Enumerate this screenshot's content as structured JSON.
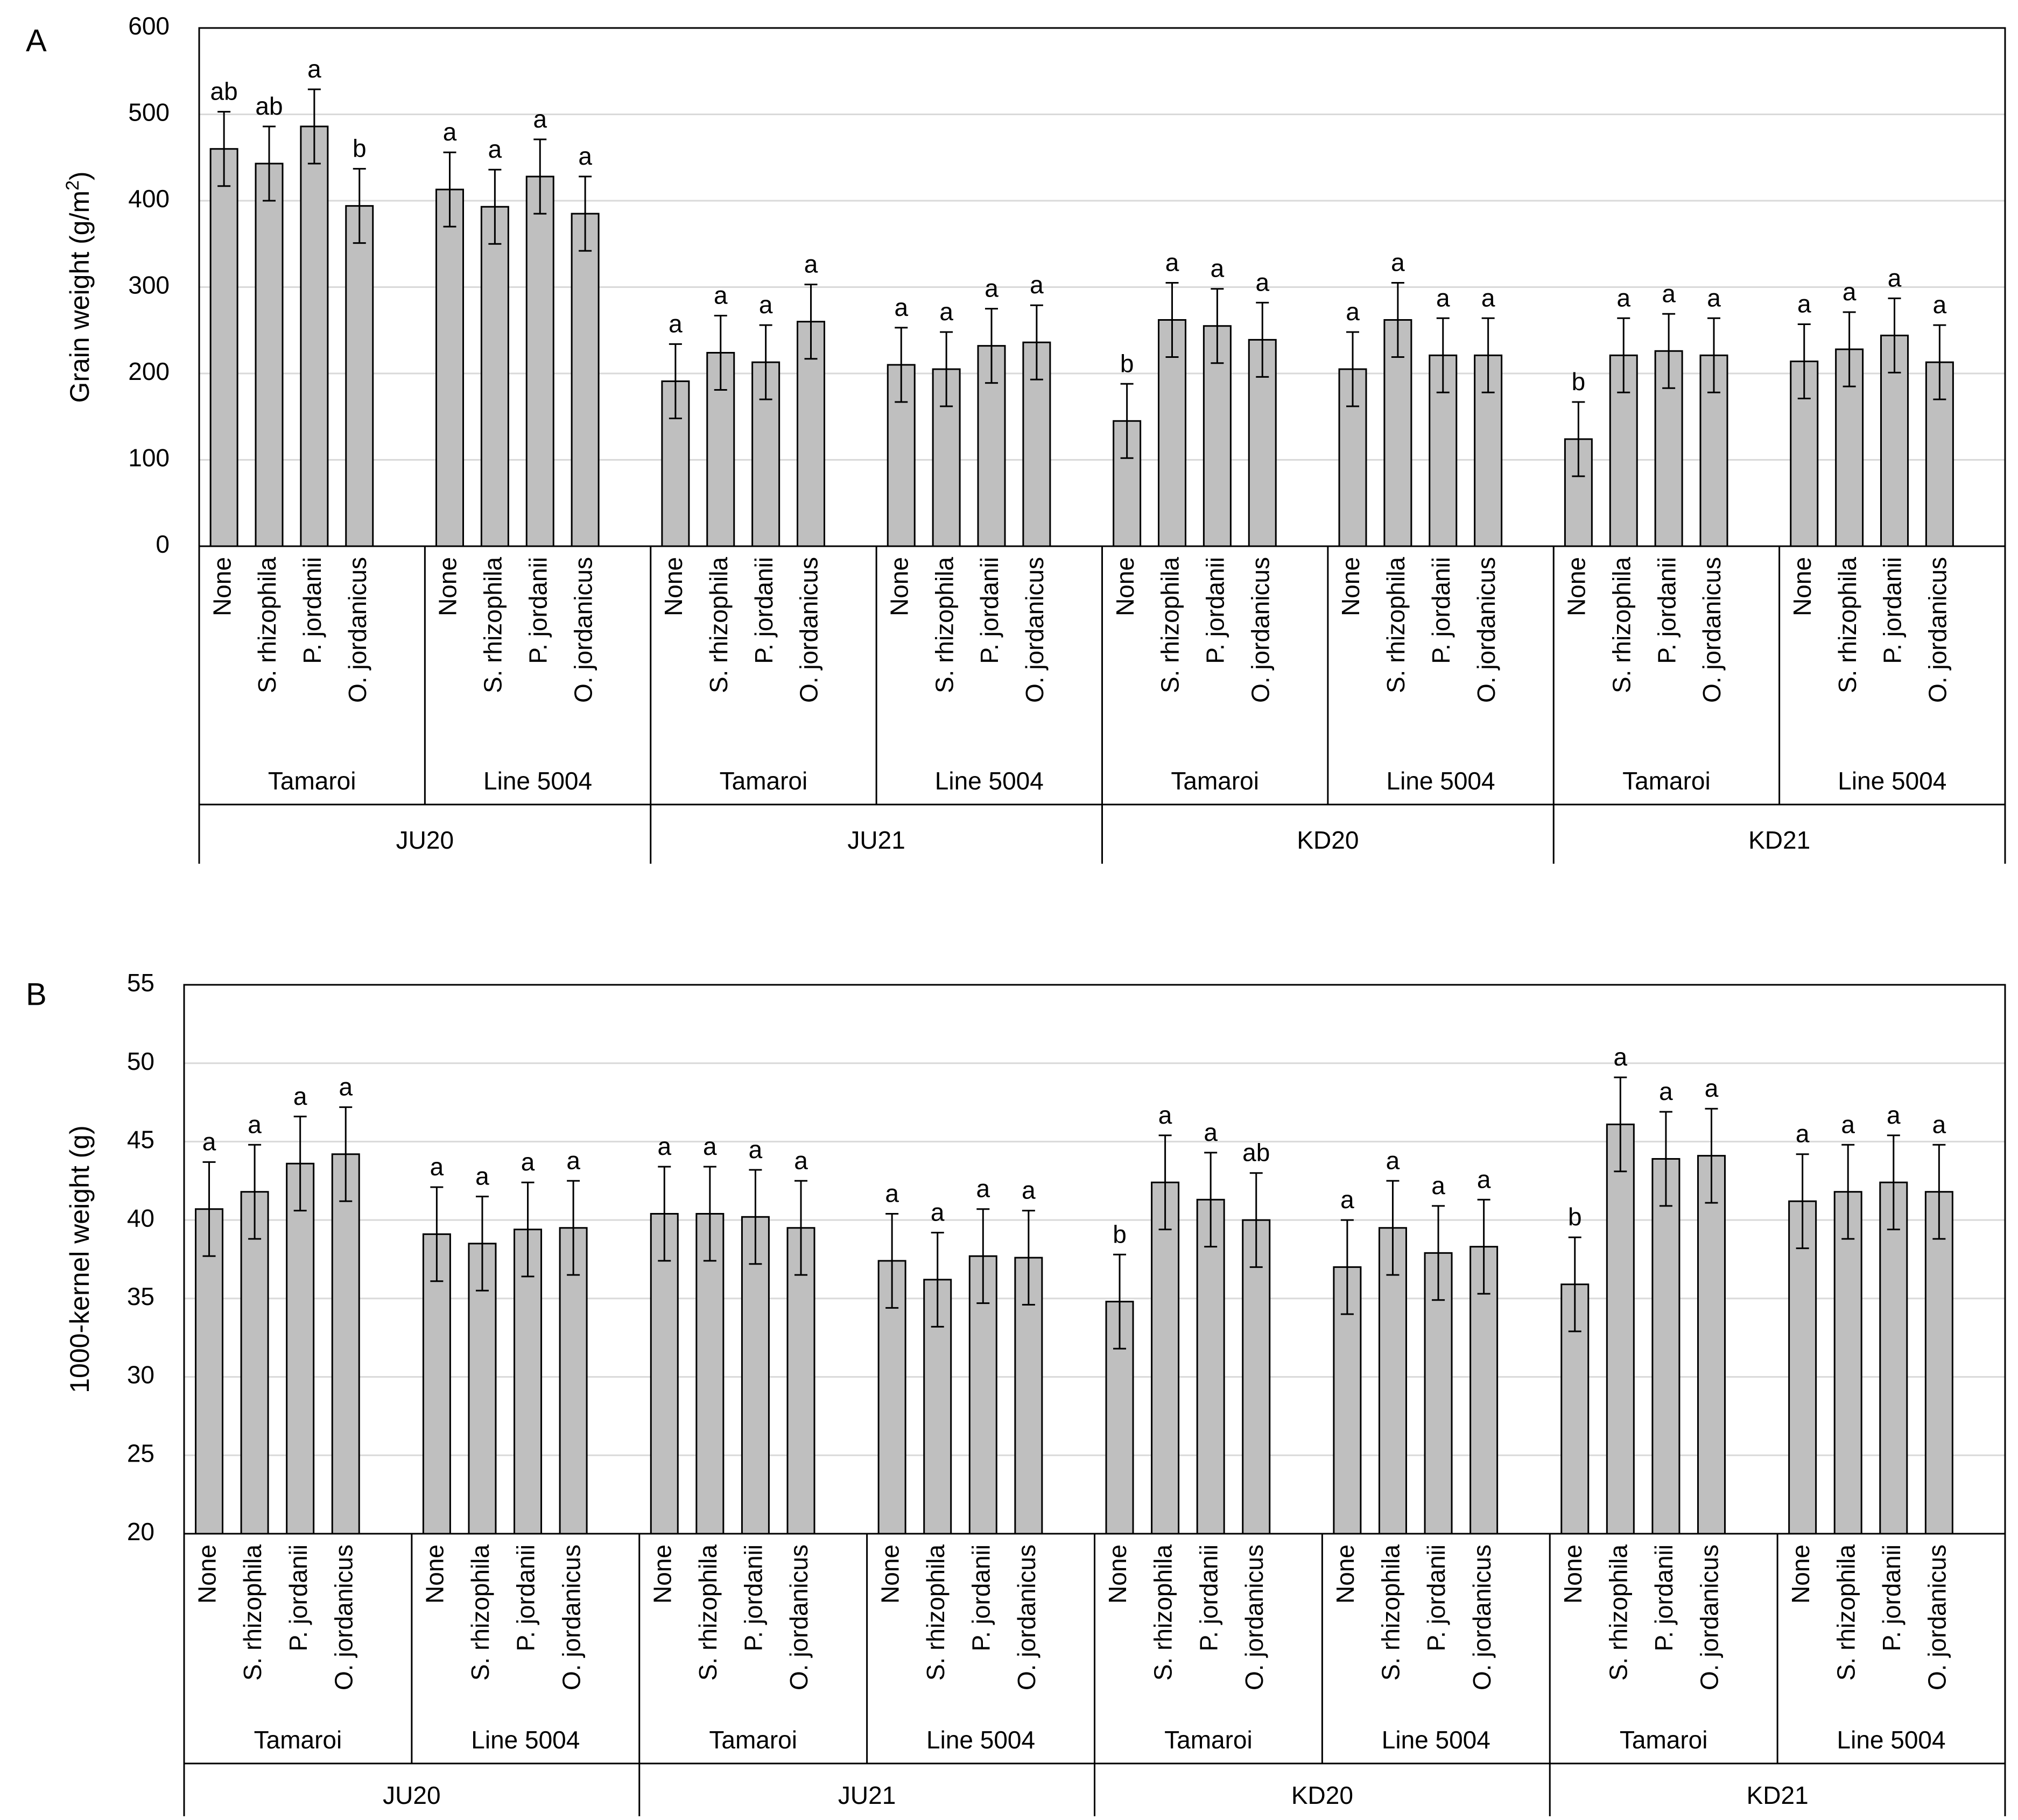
{
  "chart_data": [
    {
      "type": "bar",
      "panel_label": "A",
      "title": "",
      "ylabel": "Grain weight (g/m",
      "ylabel_sup": "2",
      "ylabel_end": ")",
      "ylim": [
        0,
        600
      ],
      "yticks": [
        0,
        100,
        200,
        300,
        400,
        500,
        600
      ],
      "grid": true,
      "sites": [
        "JU20",
        "JU21",
        "KD20",
        "KD21"
      ],
      "cultivars": [
        "Tamaroi",
        "Line 5004"
      ],
      "treatments": [
        "None",
        "S. rhizophila",
        "P. jordanii",
        "O. jordanicus"
      ],
      "values": [
        [
          [
            460,
            443,
            486,
            394
          ],
          [
            413,
            393,
            428,
            385
          ]
        ],
        [
          [
            191,
            224,
            213,
            260
          ],
          [
            210,
            205,
            232,
            236
          ]
        ],
        [
          [
            145,
            262,
            255,
            239
          ],
          [
            205,
            262,
            221,
            221
          ]
        ],
        [
          [
            124,
            221,
            226,
            221
          ],
          [
            214,
            228,
            244,
            213
          ]
        ]
      ],
      "errors": [
        [
          [
            43,
            43,
            43,
            43
          ],
          [
            43,
            43,
            43,
            43
          ]
        ],
        [
          [
            43,
            43,
            43,
            43
          ],
          [
            43,
            43,
            43,
            43
          ]
        ],
        [
          [
            43,
            43,
            43,
            43
          ],
          [
            43,
            43,
            43,
            43
          ]
        ],
        [
          [
            43,
            43,
            43,
            43
          ],
          [
            43,
            43,
            43,
            43
          ]
        ]
      ],
      "letters": [
        [
          [
            "ab",
            "ab",
            "a",
            "b"
          ],
          [
            "a",
            "a",
            "a",
            "a"
          ]
        ],
        [
          [
            "a",
            "a",
            "a",
            "a"
          ],
          [
            "a",
            "a",
            "a",
            "a"
          ]
        ],
        [
          [
            "b",
            "a",
            "a",
            "a"
          ],
          [
            "a",
            "a",
            "a",
            "a"
          ]
        ],
        [
          [
            "b",
            "a",
            "a",
            "a"
          ],
          [
            "a",
            "a",
            "a",
            "a"
          ]
        ]
      ]
    },
    {
      "type": "bar",
      "panel_label": "B",
      "title": "",
      "ylabel": "1000-kernel weight (g)",
      "ylabel_sup": "",
      "ylabel_end": "",
      "ylim": [
        20,
        55
      ],
      "yticks": [
        20,
        25,
        30,
        35,
        40,
        45,
        50,
        55
      ],
      "grid": true,
      "sites": [
        "JU20",
        "JU21",
        "KD20",
        "KD21"
      ],
      "cultivars": [
        "Tamaroi",
        "Line 5004"
      ],
      "treatments": [
        "None",
        "S. rhizophila",
        "P. jordanii",
        "O. jordanicus"
      ],
      "values": [
        [
          [
            40.7,
            41.8,
            43.6,
            44.2
          ],
          [
            39.1,
            38.5,
            39.4,
            39.5
          ]
        ],
        [
          [
            40.4,
            40.4,
            40.2,
            39.5
          ],
          [
            37.4,
            36.2,
            37.7,
            37.6
          ]
        ],
        [
          [
            34.8,
            42.4,
            41.3,
            40.0
          ],
          [
            37.0,
            39.5,
            37.9,
            38.3
          ]
        ],
        [
          [
            35.9,
            46.1,
            43.9,
            44.1
          ],
          [
            41.2,
            41.8,
            42.4,
            41.8
          ]
        ]
      ],
      "errors": [
        [
          [
            3.0,
            3.0,
            3.0,
            3.0
          ],
          [
            3.0,
            3.0,
            3.0,
            3.0
          ]
        ],
        [
          [
            3.0,
            3.0,
            3.0,
            3.0
          ],
          [
            3.0,
            3.0,
            3.0,
            3.0
          ]
        ],
        [
          [
            3.0,
            3.0,
            3.0,
            3.0
          ],
          [
            3.0,
            3.0,
            3.0,
            3.0
          ]
        ],
        [
          [
            3.0,
            3.0,
            3.0,
            3.0
          ],
          [
            3.0,
            3.0,
            3.0,
            3.0
          ]
        ]
      ],
      "letters": [
        [
          [
            "a",
            "a",
            "a",
            "a"
          ],
          [
            "a",
            "a",
            "a",
            "a"
          ]
        ],
        [
          [
            "a",
            "a",
            "a",
            "a"
          ],
          [
            "a",
            "a",
            "a",
            "a"
          ]
        ],
        [
          [
            "b",
            "a",
            "a",
            "ab"
          ],
          [
            "a",
            "a",
            "a",
            "a"
          ]
        ],
        [
          [
            "b",
            "a",
            "a",
            "a"
          ],
          [
            "a",
            "a",
            "a",
            "a"
          ]
        ]
      ]
    }
  ]
}
